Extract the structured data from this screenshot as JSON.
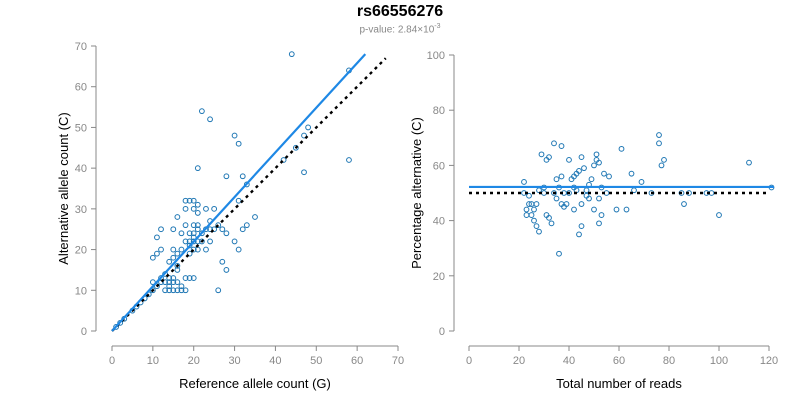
{
  "title": "rs66556276",
  "subtitle": {
    "prefix": "p-value: 2.84×10",
    "exponent": "-3"
  },
  "colors": {
    "points": "#1f77b4",
    "fit": "#1e88e5",
    "reference": "#000000",
    "axis": "#888888"
  },
  "chart_data": [
    {
      "type": "scatter",
      "xlabel": "Reference allele count (G)",
      "ylabel": "Alternative allele count (C)",
      "xlim": [
        0,
        70
      ],
      "ylim": [
        0,
        70
      ],
      "xticks": [
        0,
        10,
        20,
        30,
        40,
        50,
        60,
        70
      ],
      "yticks": [
        0,
        10,
        20,
        30,
        40,
        50,
        60,
        70
      ],
      "fit_line": {
        "x": [
          0,
          62
        ],
        "y": [
          0,
          68
        ]
      },
      "reference_line": {
        "x": [
          0,
          67
        ],
        "y": [
          0,
          67
        ]
      },
      "points": [
        [
          1,
          1
        ],
        [
          2,
          2
        ],
        [
          3,
          3
        ],
        [
          5,
          5
        ],
        [
          6,
          6
        ],
        [
          7,
          7
        ],
        [
          8,
          8
        ],
        [
          9,
          9
        ],
        [
          10,
          10
        ],
        [
          10,
          12
        ],
        [
          11,
          11
        ],
        [
          10,
          18
        ],
        [
          11,
          19
        ],
        [
          11,
          23
        ],
        [
          12,
          12
        ],
        [
          12,
          13
        ],
        [
          12,
          20
        ],
        [
          12,
          25
        ],
        [
          13,
          10
        ],
        [
          13,
          12
        ],
        [
          13,
          14
        ],
        [
          14,
          10
        ],
        [
          14,
          11
        ],
        [
          14,
          12
        ],
        [
          14,
          13
        ],
        [
          14,
          17
        ],
        [
          15,
          10
        ],
        [
          15,
          12
        ],
        [
          15,
          13
        ],
        [
          15,
          18
        ],
        [
          15,
          20
        ],
        [
          15,
          25
        ],
        [
          16,
          10
        ],
        [
          16,
          12
        ],
        [
          16,
          15
        ],
        [
          16,
          16
        ],
        [
          16,
          19
        ],
        [
          16,
          28
        ],
        [
          17,
          10
        ],
        [
          17,
          11
        ],
        [
          17,
          20
        ],
        [
          17,
          24
        ],
        [
          18,
          10
        ],
        [
          18,
          13
        ],
        [
          18,
          22
        ],
        [
          18,
          26
        ],
        [
          18,
          30
        ],
        [
          18,
          32
        ],
        [
          19,
          13
        ],
        [
          19,
          19
        ],
        [
          19,
          21
        ],
        [
          19,
          22
        ],
        [
          19,
          24
        ],
        [
          19,
          32
        ],
        [
          20,
          13
        ],
        [
          20,
          20
        ],
        [
          20,
          22
        ],
        [
          20,
          23
        ],
        [
          20,
          24
        ],
        [
          20,
          26
        ],
        [
          20,
          30
        ],
        [
          20,
          32
        ],
        [
          21,
          20
        ],
        [
          21,
          22
        ],
        [
          21,
          25
        ],
        [
          21,
          26
        ],
        [
          21,
          29
        ],
        [
          21,
          31
        ],
        [
          21,
          40
        ],
        [
          22,
          22
        ],
        [
          22,
          24
        ],
        [
          22,
          54
        ],
        [
          23,
          20
        ],
        [
          23,
          25
        ],
        [
          23,
          30
        ],
        [
          24,
          22
        ],
        [
          24,
          25
        ],
        [
          24,
          27
        ],
        [
          24,
          52
        ],
        [
          25,
          25
        ],
        [
          25,
          30
        ],
        [
          26,
          10
        ],
        [
          26,
          26
        ],
        [
          27,
          17
        ],
        [
          27,
          25
        ],
        [
          28,
          15
        ],
        [
          28,
          24
        ],
        [
          28,
          38
        ],
        [
          30,
          22
        ],
        [
          30,
          48
        ],
        [
          31,
          20
        ],
        [
          31,
          46
        ],
        [
          31,
          32
        ],
        [
          32,
          38
        ],
        [
          32,
          25
        ],
        [
          33,
          26
        ],
        [
          33,
          36
        ],
        [
          35,
          28
        ],
        [
          42,
          42
        ],
        [
          44,
          68
        ],
        [
          45,
          45
        ],
        [
          47,
          39
        ],
        [
          47,
          48
        ],
        [
          48,
          50
        ],
        [
          58,
          42
        ],
        [
          58,
          64
        ]
      ]
    },
    {
      "type": "scatter",
      "xlabel": "Total number of reads",
      "ylabel": "Percentage alternative (C)",
      "xlim": [
        0,
        120
      ],
      "ylim": [
        0,
        100
      ],
      "xticks": [
        0,
        20,
        40,
        60,
        80,
        100,
        120
      ],
      "yticks": [
        0,
        20,
        40,
        60,
        80,
        100
      ],
      "fit_line": {
        "x": [
          0,
          122
        ],
        "y": [
          52.2,
          52.2
        ]
      },
      "reference_line": {
        "x": [
          0,
          120
        ],
        "y": [
          50,
          50
        ]
      },
      "points": [
        [
          22,
          54
        ],
        [
          22,
          50
        ],
        [
          23,
          44
        ],
        [
          23,
          42
        ],
        [
          24,
          46
        ],
        [
          24,
          49
        ],
        [
          25,
          46
        ],
        [
          25,
          42
        ],
        [
          26,
          44
        ],
        [
          26,
          40
        ],
        [
          27,
          38
        ],
        [
          27,
          46
        ],
        [
          28,
          51
        ],
        [
          28,
          36
        ],
        [
          29,
          64
        ],
        [
          30,
          50
        ],
        [
          30,
          52
        ],
        [
          31,
          62
        ],
        [
          31,
          42
        ],
        [
          32,
          63
        ],
        [
          32,
          41
        ],
        [
          33,
          39
        ],
        [
          34,
          50
        ],
        [
          34,
          68
        ],
        [
          35,
          48
        ],
        [
          35,
          55
        ],
        [
          36,
          28
        ],
        [
          36,
          52
        ],
        [
          37,
          56
        ],
        [
          37,
          46
        ],
        [
          37,
          67
        ],
        [
          38,
          50
        ],
        [
          38,
          45
        ],
        [
          39,
          46
        ],
        [
          40,
          62
        ],
        [
          40,
          50
        ],
        [
          41,
          55
        ],
        [
          42,
          56
        ],
        [
          42,
          52
        ],
        [
          42,
          44
        ],
        [
          43,
          51
        ],
        [
          43,
          57
        ],
        [
          44,
          58
        ],
        [
          44,
          35
        ],
        [
          45,
          38
        ],
        [
          45,
          63
        ],
        [
          45,
          46
        ],
        [
          46,
          59
        ],
        [
          47,
          51
        ],
        [
          47,
          49
        ],
        [
          48,
          53
        ],
        [
          48,
          48
        ],
        [
          49,
          55
        ],
        [
          50,
          60
        ],
        [
          50,
          44
        ],
        [
          51,
          64
        ],
        [
          51,
          62
        ],
        [
          52,
          61
        ],
        [
          52,
          48
        ],
        [
          52,
          39
        ],
        [
          53,
          52
        ],
        [
          53,
          42
        ],
        [
          54,
          57
        ],
        [
          55,
          50
        ],
        [
          56,
          56
        ],
        [
          59,
          44
        ],
        [
          61,
          66
        ],
        [
          63,
          44
        ],
        [
          65,
          57
        ],
        [
          66,
          51
        ],
        [
          69,
          54
        ],
        [
          73,
          50
        ],
        [
          76,
          71
        ],
        [
          76,
          68
        ],
        [
          77,
          60
        ],
        [
          78,
          62
        ],
        [
          85,
          50
        ],
        [
          86,
          46
        ],
        [
          88,
          50
        ],
        [
          95,
          50
        ],
        [
          97,
          50
        ],
        [
          100,
          42
        ],
        [
          112,
          61
        ],
        [
          121,
          52
        ]
      ]
    }
  ]
}
